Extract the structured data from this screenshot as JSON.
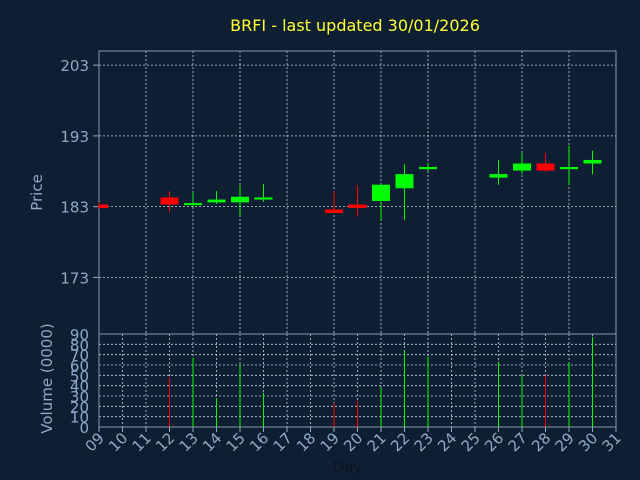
{
  "title": "BRFI - last updated 30/01/2026",
  "chart_data": [
    {
      "type": "candlestick",
      "ylabel": "Price",
      "ylim": [
        165,
        205
      ],
      "yticks": [
        173,
        183,
        193,
        203
      ],
      "grid": true,
      "candles": [
        {
          "day": 9,
          "open": 183.3,
          "high": 183.6,
          "low": 182.7,
          "close": 182.8
        },
        {
          "day": 12,
          "open": 184.3,
          "high": 185.2,
          "low": 182.2,
          "close": 183.3
        },
        {
          "day": 13,
          "open": 183.3,
          "high": 185.0,
          "low": 183.0,
          "close": 183.5
        },
        {
          "day": 14,
          "open": 183.6,
          "high": 185.2,
          "low": 183.4,
          "close": 184.0
        },
        {
          "day": 15,
          "open": 183.6,
          "high": 186.0,
          "low": 181.6,
          "close": 184.4
        },
        {
          "day": 16,
          "open": 184.0,
          "high": 186.2,
          "low": 183.7,
          "close": 184.3
        },
        {
          "day": 19,
          "open": 182.6,
          "high": 185.2,
          "low": 182.1,
          "close": 182.1
        },
        {
          "day": 20,
          "open": 183.3,
          "high": 186.0,
          "low": 181.6,
          "close": 182.8
        },
        {
          "day": 21,
          "open": 183.8,
          "high": 186.2,
          "low": 181.1,
          "close": 186.1
        },
        {
          "day": 22,
          "open": 185.6,
          "high": 189.0,
          "low": 181.1,
          "close": 187.6
        },
        {
          "day": 23,
          "open": 188.3,
          "high": 189.2,
          "low": 188.0,
          "close": 188.6
        },
        {
          "day": 26,
          "open": 187.1,
          "high": 189.6,
          "low": 186.1,
          "close": 187.6
        },
        {
          "day": 27,
          "open": 188.1,
          "high": 190.6,
          "low": 187.6,
          "close": 189.1
        },
        {
          "day": 28,
          "open": 189.1,
          "high": 190.6,
          "low": 187.9,
          "close": 188.1
        },
        {
          "day": 29,
          "open": 188.3,
          "high": 191.6,
          "low": 186.1,
          "close": 188.6
        },
        {
          "day": 30,
          "open": 189.1,
          "high": 190.9,
          "low": 187.6,
          "close": 189.6
        }
      ]
    },
    {
      "type": "bar",
      "ylabel": "Volume (0000)",
      "xlabel": "Day",
      "ylim": [
        0,
        90
      ],
      "yticks": [
        0,
        10,
        20,
        30,
        40,
        50,
        60,
        70,
        80,
        90
      ],
      "xticks": [
        "09",
        "10",
        "11",
        "12",
        "13",
        "14",
        "15",
        "16",
        "17",
        "18",
        "19",
        "20",
        "21",
        "22",
        "23",
        "24",
        "25",
        "26",
        "27",
        "28",
        "29",
        "30",
        "31"
      ],
      "grid": true,
      "volumes": [
        {
          "day": 9,
          "value": 0,
          "direction": "down"
        },
        {
          "day": 12,
          "value": 48,
          "direction": "down"
        },
        {
          "day": 13,
          "value": 67,
          "direction": "up"
        },
        {
          "day": 14,
          "value": 28,
          "direction": "up"
        },
        {
          "day": 15,
          "value": 60,
          "direction": "up"
        },
        {
          "day": 16,
          "value": 33,
          "direction": "up"
        },
        {
          "day": 19,
          "value": 23,
          "direction": "down"
        },
        {
          "day": 20,
          "value": 25,
          "direction": "down"
        },
        {
          "day": 21,
          "value": 38,
          "direction": "up"
        },
        {
          "day": 22,
          "value": 74,
          "direction": "up"
        },
        {
          "day": 23,
          "value": 68,
          "direction": "up"
        },
        {
          "day": 26,
          "value": 63,
          "direction": "up"
        },
        {
          "day": 27,
          "value": 50,
          "direction": "up"
        },
        {
          "day": 28,
          "value": 50,
          "direction": "down"
        },
        {
          "day": 29,
          "value": 62,
          "direction": "up"
        },
        {
          "day": 30,
          "value": 87,
          "direction": "up"
        }
      ]
    }
  ],
  "colors": {
    "background": "#0f1f33",
    "axis_text": "#8fa9c8",
    "title": "#ffff33",
    "up": "#00ff00",
    "down": "#ff0000",
    "grid": "#c8d0da"
  }
}
